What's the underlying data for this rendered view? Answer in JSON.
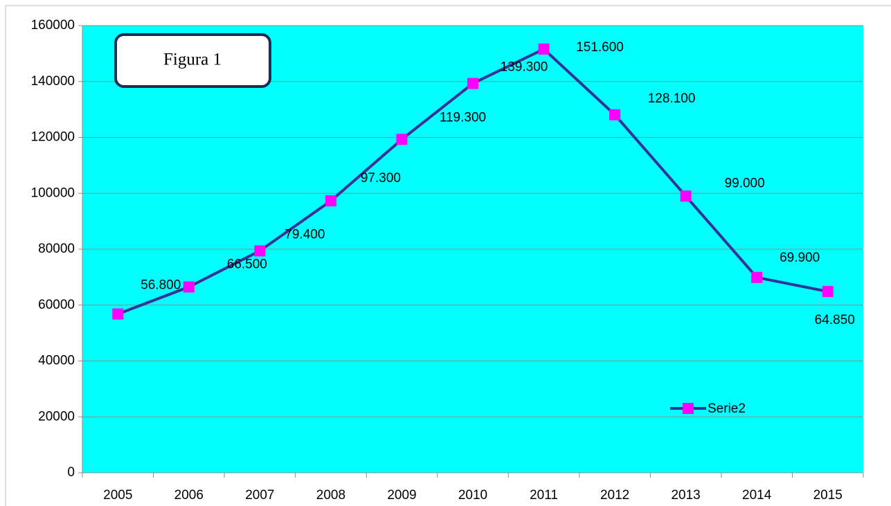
{
  "chart_data": {
    "type": "line",
    "annotation": "Figura 1",
    "categories": [
      "2005",
      "2006",
      "2007",
      "2008",
      "2009",
      "2010",
      "2011",
      "2012",
      "2013",
      "2014",
      "2015"
    ],
    "series": [
      {
        "name": "Serie2",
        "color": "#333399",
        "marker_color": "#ff00ff",
        "values": [
          56800,
          66500,
          79400,
          97300,
          119300,
          139300,
          151600,
          128100,
          99000,
          69900,
          64850
        ],
        "value_labels": [
          "56.800",
          "66.500",
          "79.400",
          "97.300",
          "119.300",
          "139.300",
          "151.600",
          "128.100",
          "99.000",
          "69.900",
          "64.850"
        ]
      }
    ],
    "ylim": [
      0,
      160000
    ],
    "yticks": [
      0,
      20000,
      40000,
      60000,
      80000,
      100000,
      120000,
      140000,
      160000
    ],
    "grid": true,
    "plot_background": "#00ffff",
    "legend": "lower right"
  }
}
